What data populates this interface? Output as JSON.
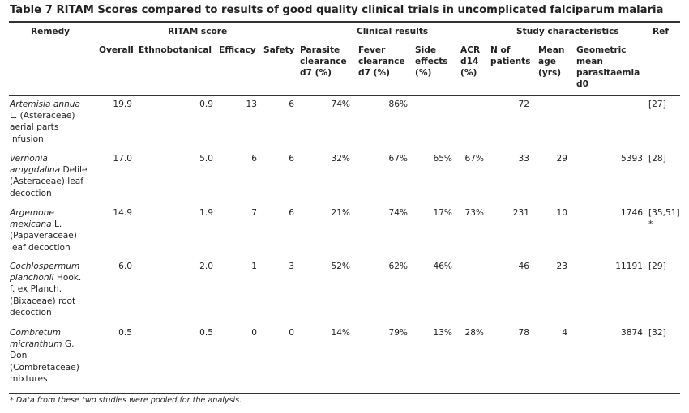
{
  "title": "Table 7 RITAM Scores compared to results of good quality clinical trials in uncomplicated falciparum malaria",
  "groups": {
    "remedy": "Remedy",
    "ritam": "RITAM score",
    "clinical": "Clinical results",
    "study": "Study characteristics",
    "ref": "Ref"
  },
  "columns": {
    "overall": "Overall",
    "ethno": "Ethnobotanical",
    "efficacy": "Efficacy",
    "safety": "Safety",
    "parasite": [
      "Parasite",
      "clearance",
      "d7 (%)"
    ],
    "fever": [
      "Fever",
      "clearance",
      "d7 (%)"
    ],
    "side": [
      "Side",
      "effects",
      "(%)"
    ],
    "acr": [
      "ACR",
      "d14",
      "(%)"
    ],
    "npat": [
      "N of",
      "patients"
    ],
    "age": [
      "Mean",
      "age",
      "(yrs)"
    ],
    "geo": [
      "Geometric",
      "mean",
      "parasitaemia",
      "d0"
    ]
  },
  "rows": [
    {
      "remedy": [
        "Artemisia annua",
        "L. (Asteraceae)",
        "aerial parts",
        "infusion"
      ],
      "overall": "19.9",
      "ethno": "0.9",
      "efficacy": "13",
      "safety": "6",
      "parasite": "74%",
      "fever": "86%",
      "side": "",
      "acr": "",
      "npat": "72",
      "age": "",
      "geo": "",
      "ref": "[27]",
      "ref2": ""
    },
    {
      "remedy": [
        "Vernonia",
        "amygdalina Delile",
        "(Asteraceae) leaf",
        "decoction"
      ],
      "overall": "17.0",
      "ethno": "5.0",
      "efficacy": "6",
      "safety": "6",
      "parasite": "32%",
      "fever": "67%",
      "side": "65%",
      "acr": "67%",
      "npat": "33",
      "age": "29",
      "geo": "5393",
      "ref": "[28]",
      "ref2": ""
    },
    {
      "remedy": [
        "Argemone",
        "mexicana L.",
        "(Papaveraceae)",
        "leaf decoction"
      ],
      "overall": "14.9",
      "ethno": "1.9",
      "efficacy": "7",
      "safety": "6",
      "parasite": "21%",
      "fever": "74%",
      "side": "17%",
      "acr": "73%",
      "npat": "231",
      "age": "10",
      "geo": "1746",
      "ref": "[35,51]",
      "ref2": "*"
    },
    {
      "remedy": [
        "Cochlospermum",
        "planchonii Hook.",
        "f. ex Planch.",
        "(Bixaceae) root",
        "decoction"
      ],
      "overall": "6.0",
      "ethno": "2.0",
      "efficacy": "1",
      "safety": "3",
      "parasite": "52%",
      "fever": "62%",
      "side": "46%",
      "acr": "",
      "npat": "46",
      "age": "23",
      "geo": "11191",
      "ref": "[29]",
      "ref2": ""
    },
    {
      "remedy": [
        "Combretum",
        "micranthum G.",
        "Don",
        "(Combretaceae)",
        "mixtures"
      ],
      "overall": "0.5",
      "ethno": "0.5",
      "efficacy": "0",
      "safety": "0",
      "parasite": "14%",
      "fever": "79%",
      "side": "13%",
      "acr": "28%",
      "npat": "78",
      "age": "4",
      "geo": "3874",
      "ref": "[32]",
      "ref2": ""
    }
  ],
  "footnote": "* Data from these two studies were pooled for the analysis."
}
